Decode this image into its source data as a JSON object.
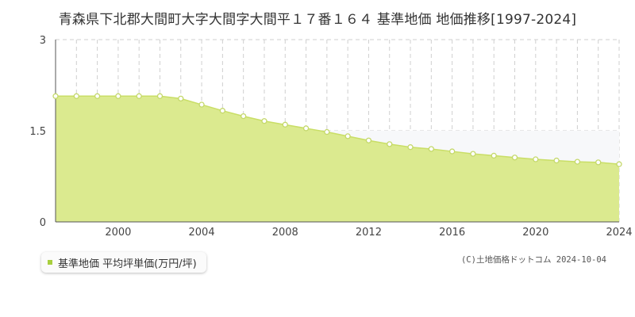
{
  "title": "青森県下北郡大間町大字大間字大間平１７番１６４ 基準地価 地価推移[1997-2024]",
  "legend_label": "基準地価 平均坪単価(万円/坪)",
  "credit": "(C)土地価格ドットコム 2024-10-04",
  "colors": {
    "fill": "#dbea8f",
    "line": "#c9de66",
    "point_stroke": "#c4d86a",
    "swatch": "#a8cf3e"
  },
  "chart_data": {
    "type": "area",
    "x": [
      1997,
      1998,
      1999,
      2000,
      2001,
      2002,
      2003,
      2004,
      2005,
      2006,
      2007,
      2008,
      2009,
      2010,
      2011,
      2012,
      2013,
      2014,
      2015,
      2016,
      2017,
      2018,
      2019,
      2020,
      2021,
      2022,
      2023,
      2024
    ],
    "values": [
      2.07,
      2.07,
      2.07,
      2.07,
      2.07,
      2.07,
      2.03,
      1.93,
      1.83,
      1.74,
      1.66,
      1.6,
      1.54,
      1.48,
      1.41,
      1.34,
      1.28,
      1.23,
      1.2,
      1.16,
      1.12,
      1.09,
      1.06,
      1.03,
      1.01,
      0.99,
      0.98,
      0.95
    ],
    "xlim": [
      1997,
      2024
    ],
    "ylim": [
      0,
      3
    ],
    "x_ticks": [
      "2000",
      "2004",
      "2008",
      "2012",
      "2016",
      "2020",
      "2024"
    ],
    "y_ticks": [
      "0",
      "1.5",
      "3"
    ],
    "title": "青森県下北郡大間町大字大間字大間平１７番１６４ 基準地価 地価推移[1997-2024]",
    "xlabel": "",
    "ylabel": "",
    "grid": true
  }
}
